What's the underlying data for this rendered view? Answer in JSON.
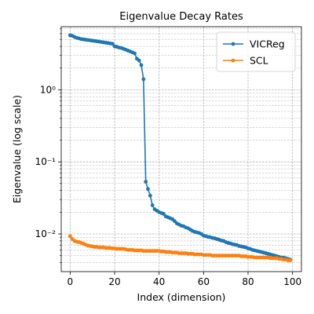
{
  "chart_data": {
    "type": "line",
    "title": "Eigenvalue Decay Rates",
    "xlabel": "Index (dimension)",
    "ylabel": "Eigenvalue (log scale)",
    "xlim": [
      -4,
      104
    ],
    "ylim": [
      0.003,
      7.5
    ],
    "yscale": "log",
    "grid": true,
    "legend_position": "upper-right",
    "xticks": [
      0,
      20,
      40,
      60,
      80,
      100
    ],
    "xtick_labels": [
      "0",
      "20",
      "40",
      "60",
      "80",
      "100"
    ],
    "yticks": [
      0.01,
      0.1,
      1
    ],
    "ytick_labels": [
      "10⁻²",
      "10⁻¹",
      "10⁰"
    ],
    "series": [
      {
        "name": "VICReg",
        "color": "#1f77b4",
        "x": [
          0,
          1,
          2,
          3,
          4,
          5,
          6,
          7,
          8,
          9,
          10,
          11,
          12,
          13,
          14,
          15,
          16,
          17,
          18,
          19,
          20,
          21,
          22,
          23,
          24,
          25,
          26,
          27,
          28,
          29,
          30,
          31,
          32,
          33,
          34,
          35,
          36,
          37,
          38,
          39,
          40,
          41,
          42,
          43,
          44,
          45,
          46,
          47,
          48,
          49,
          50,
          51,
          52,
          53,
          54,
          55,
          56,
          57,
          58,
          59,
          60,
          61,
          62,
          63,
          64,
          65,
          66,
          67,
          68,
          69,
          70,
          71,
          72,
          73,
          74,
          75,
          76,
          77,
          78,
          79,
          80,
          81,
          82,
          83,
          84,
          85,
          86,
          87,
          88,
          89,
          90,
          91,
          92,
          93,
          94,
          95,
          96,
          97,
          98,
          99
        ],
        "values": [
          5.7,
          5.6,
          5.4,
          5.25,
          5.15,
          5.05,
          5.0,
          4.95,
          4.9,
          4.85,
          4.8,
          4.75,
          4.7,
          4.65,
          4.6,
          4.55,
          4.5,
          4.45,
          4.4,
          4.35,
          4.0,
          3.95,
          3.85,
          3.8,
          3.7,
          3.6,
          3.5,
          3.4,
          3.3,
          3.2,
          2.7,
          2.55,
          2.2,
          1.4,
          0.053,
          0.042,
          0.034,
          0.025,
          0.022,
          0.021,
          0.02,
          0.0195,
          0.019,
          0.0175,
          0.017,
          0.0165,
          0.016,
          0.015,
          0.014,
          0.0135,
          0.013,
          0.0128,
          0.0123,
          0.012,
          0.0115,
          0.011,
          0.0107,
          0.0105,
          0.0103,
          0.01,
          0.0095,
          0.0093,
          0.0091,
          0.009,
          0.0088,
          0.0087,
          0.0085,
          0.0083,
          0.0081,
          0.008,
          0.0077,
          0.0075,
          0.0074,
          0.0072,
          0.0071,
          0.007,
          0.0068,
          0.0067,
          0.0066,
          0.0065,
          0.0063,
          0.0062,
          0.006,
          0.0059,
          0.0058,
          0.0057,
          0.0056,
          0.0055,
          0.0054,
          0.0053,
          0.0052,
          0.0051,
          0.005,
          0.0049,
          0.0048,
          0.0047,
          0.0047,
          0.0046,
          0.0045,
          0.0044
        ]
      },
      {
        "name": "SCL",
        "color": "#ff7f0e",
        "x": [
          0,
          1,
          2,
          3,
          4,
          5,
          6,
          7,
          8,
          9,
          10,
          11,
          12,
          13,
          14,
          15,
          16,
          17,
          18,
          19,
          20,
          21,
          22,
          23,
          24,
          25,
          26,
          27,
          28,
          29,
          30,
          31,
          32,
          33,
          34,
          35,
          36,
          37,
          38,
          39,
          40,
          41,
          42,
          43,
          44,
          45,
          46,
          47,
          48,
          49,
          50,
          51,
          52,
          53,
          54,
          55,
          56,
          57,
          58,
          59,
          60,
          61,
          62,
          63,
          64,
          65,
          66,
          67,
          68,
          69,
          70,
          71,
          72,
          73,
          74,
          75,
          76,
          77,
          78,
          79,
          80,
          81,
          82,
          83,
          84,
          85,
          86,
          87,
          88,
          89,
          90,
          91,
          92,
          93,
          94,
          95,
          96,
          97,
          98,
          99
        ],
        "values": [
          0.0093,
          0.0085,
          0.008,
          0.0078,
          0.0077,
          0.0075,
          0.0073,
          0.0071,
          0.0069,
          0.0068,
          0.0067,
          0.0066,
          0.0066,
          0.0065,
          0.0065,
          0.0065,
          0.0064,
          0.0064,
          0.0064,
          0.0063,
          0.0063,
          0.0062,
          0.0062,
          0.0062,
          0.0062,
          0.0061,
          0.006,
          0.006,
          0.006,
          0.0059,
          0.0059,
          0.0059,
          0.0059,
          0.0058,
          0.0058,
          0.0058,
          0.0058,
          0.0058,
          0.0058,
          0.0058,
          0.0058,
          0.0057,
          0.0057,
          0.0056,
          0.0056,
          0.0056,
          0.0055,
          0.0055,
          0.0055,
          0.0054,
          0.0054,
          0.0054,
          0.0054,
          0.0053,
          0.0053,
          0.0053,
          0.0052,
          0.0052,
          0.0052,
          0.0052,
          0.0051,
          0.0051,
          0.0051,
          0.0051,
          0.005,
          0.005,
          0.005,
          0.005,
          0.005,
          0.005,
          0.005,
          0.005,
          0.005,
          0.005,
          0.005,
          0.005,
          0.005,
          0.0049,
          0.0049,
          0.0049,
          0.0048,
          0.0048,
          0.0048,
          0.0047,
          0.0047,
          0.0047,
          0.0047,
          0.0047,
          0.0047,
          0.0047,
          0.0046,
          0.0046,
          0.0046,
          0.0046,
          0.0045,
          0.0045,
          0.0044,
          0.0044,
          0.0043,
          0.0043
        ]
      }
    ]
  }
}
